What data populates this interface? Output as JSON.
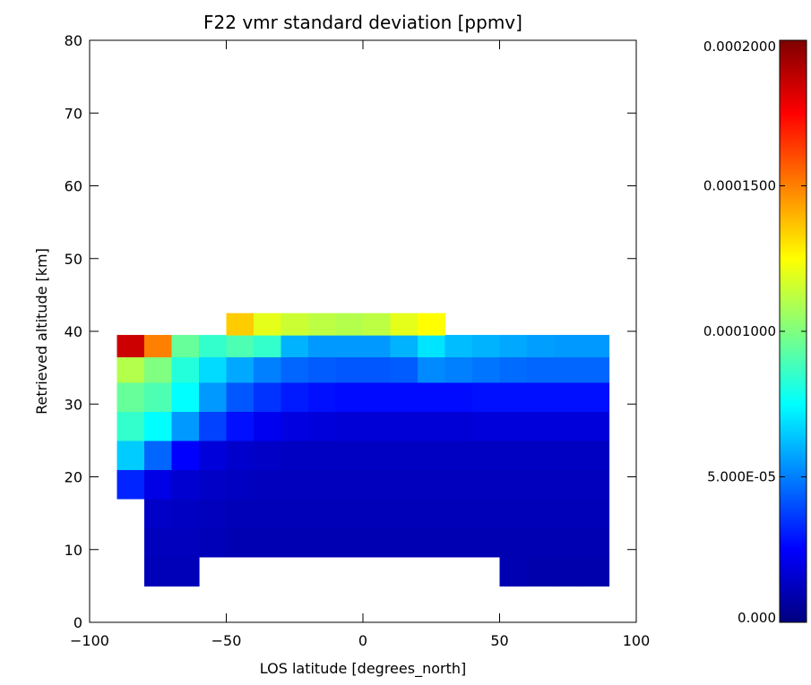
{
  "chart_data": {
    "type": "heatmap",
    "title": "F22 vmr standard deviation [ppmv]",
    "xlabel": "LOS latitude [degrees_north]",
    "ylabel": "Retrieved altitude [km]",
    "xlim": [
      -100,
      100
    ],
    "ylim": [
      0,
      80
    ],
    "xticks": [
      -100,
      -50,
      0,
      50,
      100
    ],
    "xtick_labels": [
      "−100",
      "−50",
      "0",
      "50",
      "100"
    ],
    "yticks": [
      0,
      10,
      20,
      30,
      40,
      50,
      60,
      70,
      80
    ],
    "ytick_labels": [
      "0",
      "10",
      "20",
      "30",
      "40",
      "50",
      "60",
      "70",
      "80"
    ],
    "colorbar": {
      "range": [
        0,
        0.0002
      ],
      "ticks": [
        0,
        5e-05,
        0.0001,
        0.00015,
        0.0002
      ],
      "tick_labels": [
        "0.000",
        "5.000E-05",
        "0.0001000",
        "0.0001500",
        "0.0002000"
      ],
      "colormap": "jet"
    },
    "data_grid": {
      "x_latitude": [
        -85,
        -75,
        -65,
        -55,
        -45,
        -35,
        -25,
        -15,
        -5,
        5,
        15,
        25,
        35,
        45,
        55,
        65,
        75,
        85
      ],
      "y_altitude": [
        7,
        11,
        15,
        19,
        23,
        27,
        31,
        35,
        38,
        41
      ],
      "values_ppmv": [
        [
          null,
          1.1e-05,
          1.1e-05,
          null,
          null,
          null,
          null,
          null,
          null,
          null,
          null,
          null,
          null,
          null,
          1e-05,
          9e-06,
          9e-06,
          9e-06
        ],
        [
          null,
          1.2e-05,
          1.2e-05,
          1.1e-05,
          1e-05,
          1e-05,
          1e-05,
          1e-05,
          1e-05,
          1e-05,
          1e-05,
          1e-05,
          1e-05,
          1e-05,
          1e-05,
          1e-05,
          1e-05,
          1e-05
        ],
        [
          null,
          1.4e-05,
          1.3e-05,
          1.2e-05,
          1.1e-05,
          1.1e-05,
          1.1e-05,
          1.1e-05,
          1.1e-05,
          1.1e-05,
          1.1e-05,
          1.1e-05,
          1.1e-05,
          1.1e-05,
          1.1e-05,
          1.1e-05,
          1.1e-05,
          1.1e-05
        ],
        [
          3.2e-05,
          2e-05,
          1.6e-05,
          1.4e-05,
          1.3e-05,
          1.2e-05,
          1.2e-05,
          1.2e-05,
          1.2e-05,
          1.2e-05,
          1.2e-05,
          1.2e-05,
          1.2e-05,
          1.2e-05,
          1.2e-05,
          1.2e-05,
          1.2e-05,
          1.2e-05
        ],
        [
          6.5e-05,
          4.5e-05,
          2.5e-05,
          1.8e-05,
          1.5e-05,
          1.4e-05,
          1.3e-05,
          1.3e-05,
          1.3e-05,
          1.3e-05,
          1.3e-05,
          1.3e-05,
          1.3e-05,
          1.3e-05,
          1.3e-05,
          1.3e-05,
          1.3e-05,
          1.3e-05
        ],
        [
          8.5e-05,
          7.5e-05,
          5.5e-05,
          3.8e-05,
          2.8e-05,
          2.2e-05,
          1.9e-05,
          1.8e-05,
          1.7e-05,
          1.7e-05,
          1.7e-05,
          1.7e-05,
          1.7e-05,
          1.8e-05,
          1.8e-05,
          1.8e-05,
          1.8e-05,
          1.8e-05
        ],
        [
          9.5e-05,
          9e-05,
          7.5e-05,
          5.5e-05,
          4.2e-05,
          3.5e-05,
          3e-05,
          2.8e-05,
          2.7e-05,
          2.7e-05,
          2.7e-05,
          2.7e-05,
          2.7e-05,
          2.8e-05,
          2.8e-05,
          2.8e-05,
          2.8e-05,
          2.8e-05
        ],
        [
          0.00011,
          0.0001,
          8.2e-05,
          6.8e-05,
          5.8e-05,
          5e-05,
          4.5e-05,
          4.3e-05,
          4.2e-05,
          4.2e-05,
          4.3e-05,
          5.2e-05,
          5e-05,
          4.8e-05,
          4.6e-05,
          4.5e-05,
          4.5e-05,
          4.5e-05
        ],
        [
          0.000185,
          0.00015,
          9.5e-05,
          8.5e-05,
          9e-05,
          8.5e-05,
          6e-05,
          5.5e-05,
          5.5e-05,
          5.5e-05,
          6e-05,
          7e-05,
          6.2e-05,
          6e-05,
          5.8e-05,
          5.6e-05,
          5.5e-05,
          5.5e-05
        ],
        [
          null,
          null,
          null,
          null,
          0.000135,
          0.00012,
          0.000115,
          0.000112,
          0.00011,
          0.000112,
          0.00012,
          0.000125,
          null,
          null,
          null,
          null,
          null,
          null
        ]
      ]
    }
  }
}
